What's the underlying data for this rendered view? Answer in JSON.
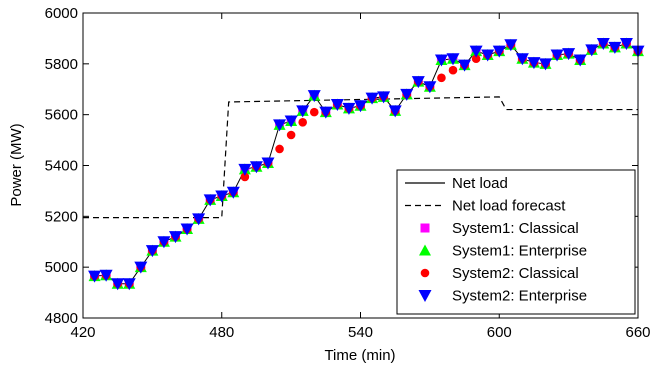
{
  "chart_data": {
    "type": "line",
    "title": "",
    "xlabel": "Time (min)",
    "ylabel": "Power (MW)",
    "xlim": [
      420,
      660
    ],
    "ylim": [
      4800,
      6000
    ],
    "xticks": [
      420,
      480,
      540,
      600,
      660
    ],
    "yticks": [
      4800,
      5000,
      5200,
      5400,
      5600,
      5800,
      6000
    ],
    "grid": false,
    "legend_position": "bottom-right",
    "colors": {
      "net_load": "#000000",
      "forecast": "#000000",
      "s1_classical": "#ff00ff",
      "s1_enterprise": "#00ff00",
      "s2_classical": "#ff0000",
      "s2_enterprise": "#0000ff"
    },
    "x": [
      425,
      430,
      435,
      440,
      445,
      450,
      455,
      460,
      465,
      470,
      475,
      480,
      485,
      490,
      495,
      500,
      505,
      510,
      515,
      520,
      525,
      530,
      535,
      540,
      545,
      550,
      555,
      560,
      565,
      570,
      575,
      580,
      585,
      590,
      595,
      600,
      605,
      610,
      615,
      620,
      625,
      630,
      635,
      640,
      645,
      650,
      655,
      660
    ],
    "series": [
      {
        "name": "Net load",
        "style": "solid-line",
        "values": [
          4965,
          4968,
          4935,
          4935,
          5000,
          5065,
          5100,
          5120,
          5150,
          5190,
          5265,
          5280,
          5295,
          5385,
          5395,
          5410,
          5560,
          5575,
          5615,
          5675,
          5610,
          5640,
          5625,
          5635,
          5665,
          5670,
          5615,
          5680,
          5730,
          5710,
          5815,
          5820,
          5795,
          5850,
          5835,
          5850,
          5875,
          5820,
          5805,
          5800,
          5835,
          5840,
          5815,
          5855,
          5880,
          5865,
          5880,
          5850
        ]
      },
      {
        "name": "Net load forecast",
        "style": "dashed-line",
        "points": [
          [
            420,
            5195
          ],
          [
            480,
            5195
          ],
          [
            483,
            5650
          ],
          [
            600,
            5670
          ],
          [
            603,
            5620
          ],
          [
            660,
            5620
          ]
        ]
      },
      {
        "name": "System1: Classical",
        "style": "square-marker",
        "values": [
          4965,
          4968,
          4935,
          4935,
          5000,
          5065,
          5100,
          5120,
          5150,
          5190,
          5265,
          5280,
          5295,
          5385,
          5395,
          5410,
          5560,
          5575,
          5615,
          5675,
          5610,
          5640,
          5625,
          5635,
          5665,
          5670,
          5615,
          5680,
          5730,
          5710,
          5815,
          5820,
          5795,
          5850,
          5835,
          5850,
          5875,
          5820,
          5805,
          5800,
          5835,
          5840,
          5815,
          5855,
          5880,
          5865,
          5880,
          5850
        ]
      },
      {
        "name": "System1: Enterprise",
        "style": "triangle-up-marker",
        "values": [
          4965,
          4968,
          4935,
          4935,
          5000,
          5065,
          5100,
          5120,
          5150,
          5190,
          5265,
          5280,
          5295,
          5385,
          5395,
          5410,
          5560,
          5575,
          5615,
          5675,
          5610,
          5640,
          5625,
          5635,
          5665,
          5670,
          5615,
          5680,
          5730,
          5710,
          5815,
          5820,
          5795,
          5850,
          5835,
          5850,
          5875,
          5820,
          5805,
          5800,
          5835,
          5840,
          5815,
          5855,
          5880,
          5865,
          5880,
          5850
        ]
      },
      {
        "name": "System2: Classical",
        "style": "circle-marker",
        "values": [
          4965,
          4968,
          4935,
          4935,
          5000,
          5065,
          5100,
          5120,
          5150,
          5190,
          5265,
          5280,
          5295,
          5355,
          5395,
          5410,
          5465,
          5520,
          5570,
          5610,
          5610,
          5640,
          5625,
          5635,
          5665,
          5670,
          5615,
          5680,
          5730,
          5710,
          5745,
          5775,
          5795,
          5820,
          5835,
          5850,
          5875,
          5820,
          5805,
          5800,
          5835,
          5840,
          5815,
          5855,
          5880,
          5865,
          5880,
          5850
        ]
      },
      {
        "name": "System2: Enterprise",
        "style": "triangle-down-marker",
        "values": [
          4965,
          4968,
          4935,
          4935,
          5000,
          5065,
          5100,
          5120,
          5150,
          5190,
          5265,
          5280,
          5295,
          5385,
          5395,
          5410,
          5560,
          5575,
          5615,
          5675,
          5610,
          5640,
          5625,
          5635,
          5665,
          5670,
          5615,
          5680,
          5730,
          5710,
          5815,
          5820,
          5795,
          5850,
          5835,
          5850,
          5875,
          5820,
          5805,
          5800,
          5835,
          5840,
          5815,
          5855,
          5880,
          5865,
          5880,
          5850
        ]
      }
    ]
  }
}
